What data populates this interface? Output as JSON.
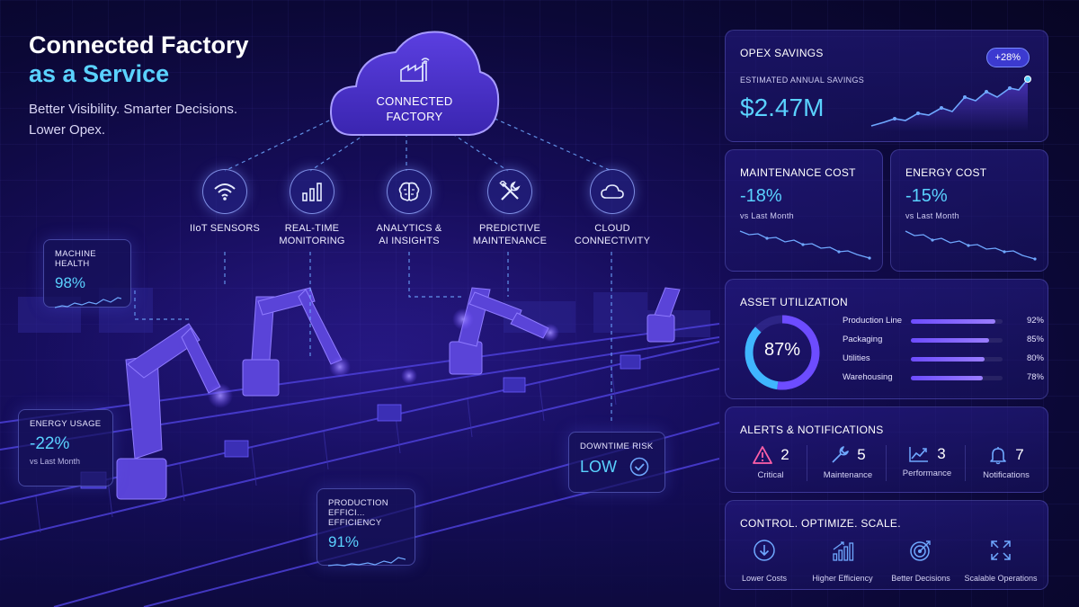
{
  "hero": {
    "title_line1": "Connected Factory",
    "title_line2": "as a Service",
    "tagline_line1": "Better Visibility. Smarter Decisions.",
    "tagline_line2": "Lower Opex."
  },
  "cloud": {
    "label_line1": "CONNECTED",
    "label_line2": "FACTORY",
    "icon": "factory-wifi-icon"
  },
  "services": [
    {
      "line1": "IIoT SENSORS",
      "line2": "",
      "icon": "wifi-icon"
    },
    {
      "line1": "REAL-TIME",
      "line2": "MONITORING",
      "icon": "bar-chart-icon"
    },
    {
      "line1": "ANALYTICS &",
      "line2": "AI INSIGHTS",
      "icon": "brain-icon"
    },
    {
      "line1": "PREDICTIVE",
      "line2": "MAINTENANCE",
      "icon": "tools-icon"
    },
    {
      "line1": "CLOUD",
      "line2": "CONNECTIVITY",
      "icon": "cloud-icon"
    }
  ],
  "floating": {
    "machine_health": {
      "title": "MACHINE HEALTH",
      "value": "98%"
    },
    "energy_usage": {
      "title": "ENERGY USAGE",
      "value": "-22%",
      "sub": "vs Last Month"
    },
    "production_efficiency": {
      "title_line1": "PRODUCTION EFFICI...",
      "title_line2": "EFFICIENCY",
      "value": "91%"
    },
    "downtime_risk": {
      "title": "DOWNTIME RISK",
      "value": "LOW"
    }
  },
  "opex": {
    "title": "OPEX SAVINGS",
    "badge": "+28%",
    "sub": "ESTIMATED ANNUAL SAVINGS",
    "value": "$2.47M"
  },
  "maintenance_cost": {
    "title": "MAINTENANCE COST",
    "value": "-18%",
    "sub": "vs Last Month"
  },
  "energy_cost": {
    "title": "ENERGY COST",
    "value": "-15%",
    "sub": "vs Last Month"
  },
  "asset_utilization": {
    "title": "ASSET UTILIZATION",
    "overall": "87%",
    "overall_fraction": 0.87,
    "rows": [
      {
        "name": "Production Line",
        "percent": "92%",
        "fraction": 0.92
      },
      {
        "name": "Packaging",
        "percent": "85%",
        "fraction": 0.85
      },
      {
        "name": "Utilities",
        "percent": "80%",
        "fraction": 0.8
      },
      {
        "name": "Warehousing",
        "percent": "78%",
        "fraction": 0.78
      }
    ]
  },
  "alerts": {
    "title": "ALERTS & NOTIFICATIONS",
    "items": [
      {
        "count": "2",
        "label": "Critical",
        "icon": "warning-icon",
        "color": "#ff5fa8"
      },
      {
        "count": "5",
        "label": "Maintenance",
        "icon": "wrench-icon",
        "color": "#6fa8ff"
      },
      {
        "count": "3",
        "label": "Performance",
        "icon": "trend-icon",
        "color": "#6fa8ff"
      },
      {
        "count": "7",
        "label": "Notifications",
        "icon": "bell-icon",
        "color": "#6fa8ff"
      }
    ]
  },
  "control": {
    "title": "CONTROL. OPTIMIZE. SCALE.",
    "items": [
      {
        "label": "Lower Costs",
        "icon": "down-arrow-icon"
      },
      {
        "label": "Higher Efficiency",
        "icon": "rising-bars-icon"
      },
      {
        "label": "Better Decisions",
        "icon": "target-icon"
      },
      {
        "label": "Scalable Operations",
        "icon": "expand-icon"
      }
    ]
  },
  "colors": {
    "accent": "#5ad2ff",
    "purple": "#6d4cff",
    "critical": "#ff5fa8"
  }
}
